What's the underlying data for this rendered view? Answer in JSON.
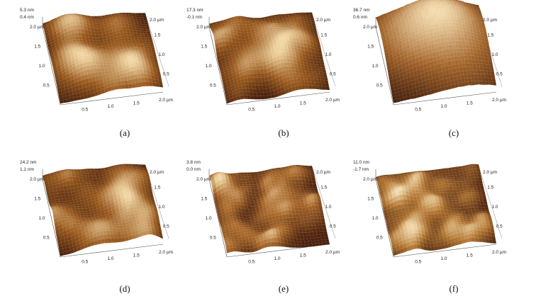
{
  "panels": [
    {
      "label": "(a)",
      "zmax": "5.3 nm",
      "zmin": "0.4 nm",
      "texture": "coarse",
      "colors": {
        "low": "#3a1608",
        "mid": "#9a5a1e",
        "high": "#f2d7a4"
      }
    },
    {
      "label": "(b)",
      "zmax": "17.3 nm",
      "zmin": "-0.1 nm",
      "texture": "medium",
      "colors": {
        "low": "#3a1608",
        "mid": "#9a5a1e",
        "high": "#f2d7a4"
      }
    },
    {
      "label": "(c)",
      "zmax": "36.7 nm",
      "zmin": "0.6 nm",
      "texture": "large",
      "colors": {
        "low": "#3a1608",
        "mid": "#a2642a",
        "high": "#f4dcae"
      }
    },
    {
      "label": "(d)",
      "zmax": "24.2 nm",
      "zmin": "1.1 nm",
      "texture": "medium",
      "colors": {
        "low": "#3a1608",
        "mid": "#9a5a1e",
        "high": "#f2d7a4"
      }
    },
    {
      "label": "(e)",
      "zmax": "3.8 nm",
      "zmin": "0.0 nm",
      "texture": "fine",
      "colors": {
        "low": "#4a200c",
        "mid": "#a8682a",
        "high": "#f2d7a4"
      }
    },
    {
      "label": "(f)",
      "zmax": "11.0 nm",
      "zmin": "-1.7 nm",
      "texture": "fine",
      "colors": {
        "low": "#4a200c",
        "mid": "#b07430",
        "high": "#f4dcae"
      }
    }
  ],
  "axis": {
    "x_ticks": [
      "0.5",
      "1.0",
      "1.5",
      "2.0 µm"
    ],
    "y_ticks": [
      "0.5",
      "1.0",
      "1.5",
      "2.0 µm"
    ],
    "back_ticks": [
      "2.0 µm",
      "1.5",
      "1.0",
      "0.5"
    ]
  }
}
